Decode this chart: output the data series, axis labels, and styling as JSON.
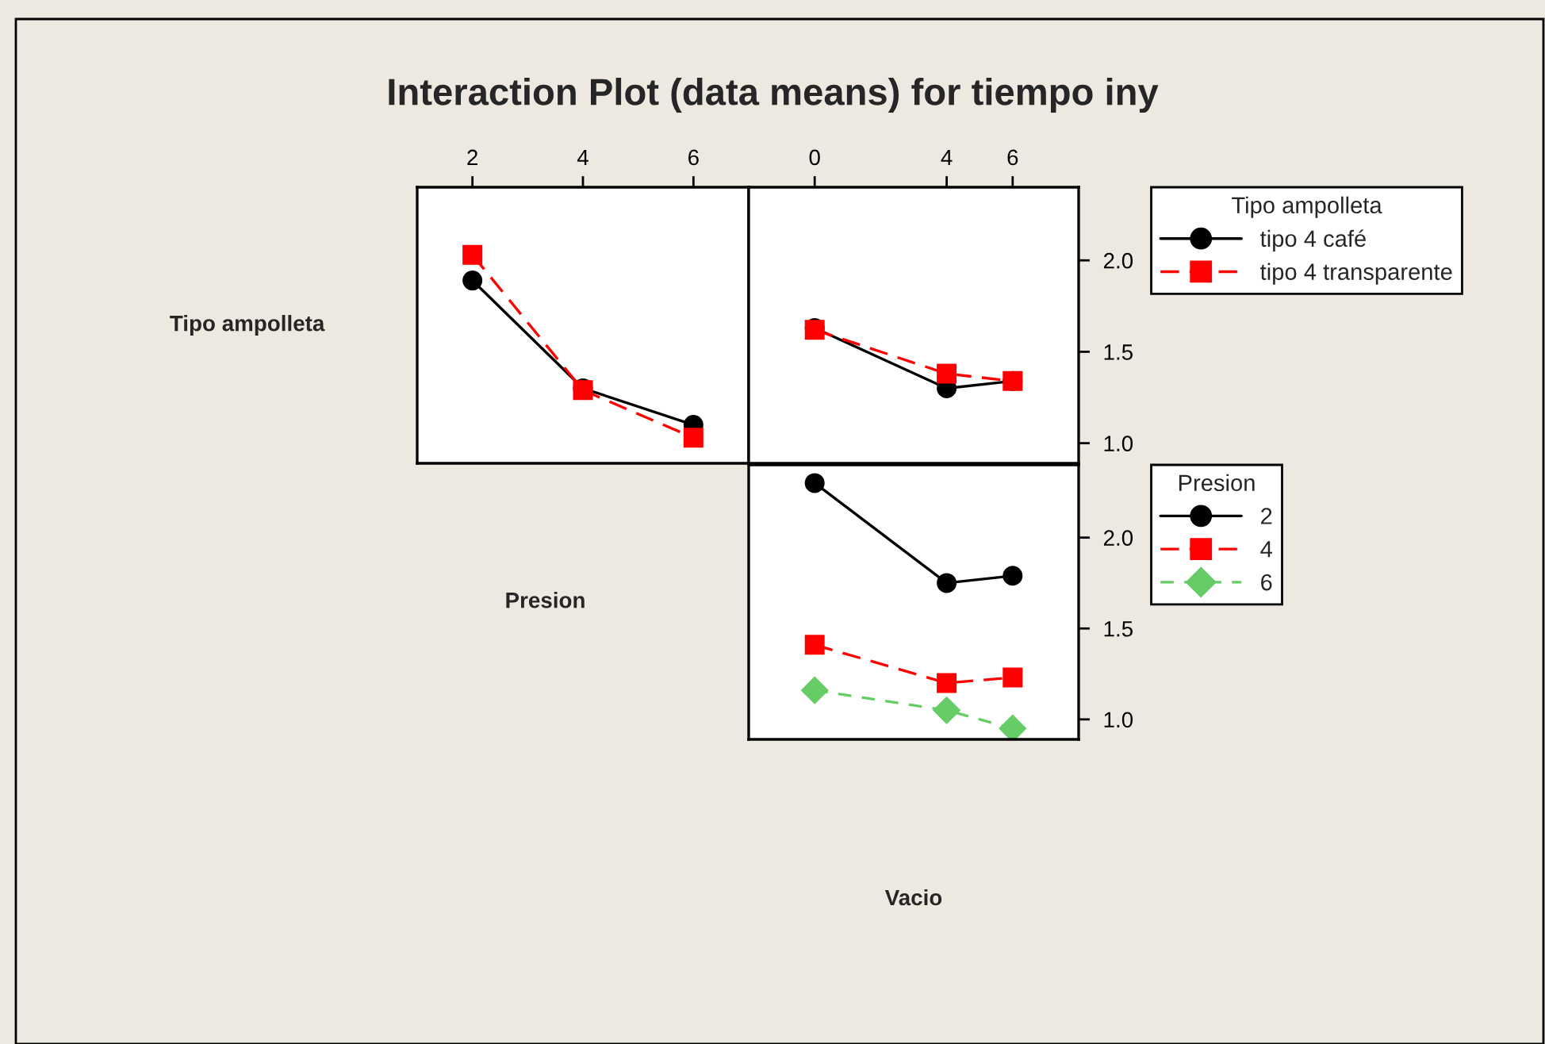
{
  "chart_data": [
    {
      "type": "line",
      "title": "Interaction Plot (data means) for tiempo iny",
      "ylabel": "Tipo ampolleta",
      "x": [
        2,
        4,
        6
      ],
      "xlim": [
        1,
        7
      ],
      "xticks": [
        2,
        4,
        6
      ],
      "ylim": [
        0.89,
        2.4
      ],
      "tick_labels": "x",
      "grid": false,
      "legend": false,
      "series": [
        {
          "color": "#000000",
          "marker": "circle",
          "line_style": "solid",
          "values": [
            1.89,
            1.3,
            1.1
          ]
        },
        {
          "color": "#ff0000",
          "marker": "square",
          "line_style": "dashed",
          "values": [
            2.03,
            1.29,
            1.03
          ]
        }
      ]
    },
    {
      "type": "line",
      "x": [
        0,
        4,
        6
      ],
      "xlim": [
        -2,
        8
      ],
      "xticks": [
        0,
        4,
        6
      ],
      "ylim": [
        0.89,
        2.4
      ],
      "yticks": [
        {
          "value": 1.0,
          "label": "1.0"
        },
        {
          "value": 1.5,
          "label": "1.5"
        },
        {
          "value": 2.0,
          "label": "2.0"
        }
      ],
      "grid": false,
      "legend": "right",
      "legend_title": "Tipo ampolleta",
      "series": [
        {
          "name": "tipo 4 café",
          "color": "#000000",
          "marker": "circle",
          "line_style": "solid",
          "values": [
            1.63,
            1.3,
            1.34
          ]
        },
        {
          "name": "tipo 4 transparente",
          "color": "#ff0000",
          "marker": "square",
          "line_style": "dashed",
          "values": [
            1.62,
            1.38,
            1.34
          ]
        }
      ]
    },
    {
      "type": "line",
      "ylabel": "Presion",
      "xlabel": "Vacio",
      "x": [
        0,
        4,
        6
      ],
      "xlim": [
        -2,
        8
      ],
      "ylim": [
        0.89,
        2.4
      ],
      "yticks": [
        {
          "value": 1.0,
          "label": "1.0"
        },
        {
          "value": 1.5,
          "label": "1.5"
        },
        {
          "value": 2.0,
          "label": "2.0"
        }
      ],
      "tick_labels": "y",
      "grid": false,
      "legend": "right",
      "legend_title": "Presion",
      "series": [
        {
          "name": "2",
          "color": "#000000",
          "marker": "circle",
          "line_style": "solid",
          "values": [
            2.3,
            1.75,
            1.79
          ]
        },
        {
          "name": "4",
          "color": "#ff0000",
          "marker": "square",
          "line_style": "dashed",
          "values": [
            1.41,
            1.2,
            1.23
          ]
        },
        {
          "name": "6",
          "color": "#66cc66",
          "marker": "diamond",
          "line_style": "dotted",
          "values": [
            1.16,
            1.05,
            0.95
          ]
        }
      ]
    }
  ]
}
